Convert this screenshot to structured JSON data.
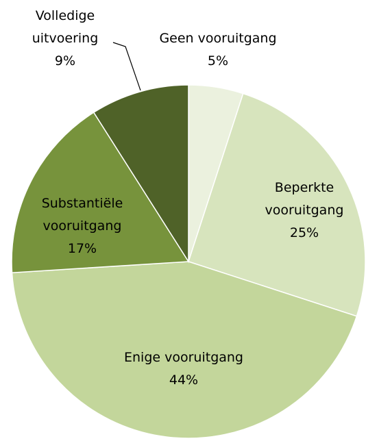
{
  "chart_data": {
    "type": "pie",
    "categories": [
      "Geen vooruitgang",
      "Beperkte vooruitgang",
      "Enige vooruitgang",
      "Substantiële vooruitgang",
      "Volledige uitvoering"
    ],
    "values": [
      5,
      25,
      44,
      17,
      9
    ],
    "value_labels": [
      "5%",
      "25%",
      "44%",
      "17%",
      "9%"
    ],
    "colors": [
      "#ebf1de",
      "#d7e4bd",
      "#c3d69b",
      "#77933c",
      "#4f6228"
    ]
  }
}
